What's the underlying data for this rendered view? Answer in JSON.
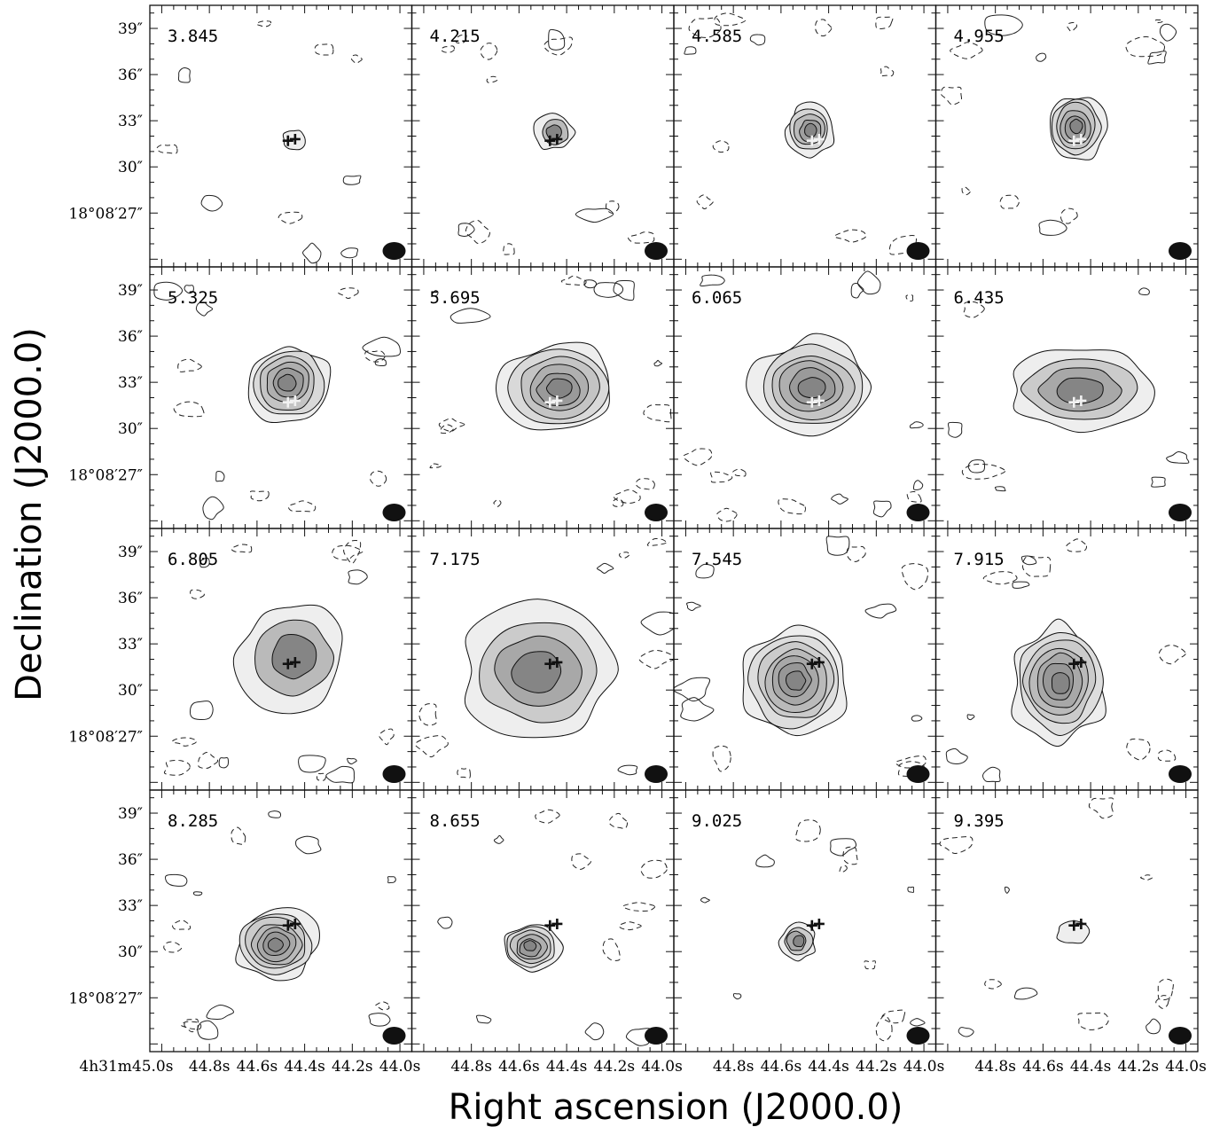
{
  "chart_data": {
    "type": "channel_map",
    "xlabel": "Right ascension (J2000.0)",
    "ylabel": "Declination (J2000.0)",
    "grid": false,
    "layout": {
      "rows": 4,
      "cols": 4
    },
    "ra_tick_labels_first_column": [
      "4h31m45.0s",
      "44.8s",
      "44.6s",
      "44.4s",
      "44.2s",
      "44.0s"
    ],
    "ra_tick_labels_other_columns": [
      "44.8s",
      "44.6s",
      "44.4s",
      "44.2s",
      "44.0s"
    ],
    "ra_ticks_seconds": [
      45.0,
      44.8,
      44.6,
      44.4,
      44.2,
      44.0
    ],
    "dec_tick_labels": [
      "39″",
      "36″",
      "33″",
      "30″",
      "18°08′27″"
    ],
    "dec_ticks_arcsec": [
      39,
      36,
      33,
      30,
      27
    ],
    "x_range_seconds": [
      45.05,
      43.95
    ],
    "y_range_arcsec": [
      40.5,
      23.5
    ],
    "beam_marker": "filled ellipse, bottom-right of each panel",
    "star_positions": [
      {
        "ra_s": 44.47,
        "dec_arcsec": 31.7
      },
      {
        "ra_s": 44.44,
        "dec_arcsec": 31.8
      }
    ],
    "panels": [
      {
        "velocity": "3.845",
        "peak": {
          "ra_s": 44.45,
          "dec_arcsec": 31.8
        },
        "levels": 1,
        "spread": [
          0.35,
          0.35
        ],
        "marker_color": "dark"
      },
      {
        "velocity": "4.215",
        "peak": {
          "ra_s": 44.45,
          "dec_arcsec": 32.2
        },
        "levels": 3,
        "spread": [
          0.6,
          0.6
        ],
        "marker_color": "dark"
      },
      {
        "velocity": "4.585",
        "peak": {
          "ra_s": 44.48,
          "dec_arcsec": 32.4
        },
        "levels": 5,
        "spread": [
          0.75,
          0.85
        ],
        "marker_color": "light"
      },
      {
        "velocity": "4.955",
        "peak": {
          "ra_s": 44.46,
          "dec_arcsec": 32.6
        },
        "levels": 6,
        "spread": [
          0.9,
          1.1
        ],
        "marker_color": "light"
      },
      {
        "velocity": "5.325",
        "peak": {
          "ra_s": 44.47,
          "dec_arcsec": 32.9
        },
        "levels": 6,
        "spread": [
          1.3,
          1.3
        ],
        "marker_color": "light"
      },
      {
        "velocity": "5.695",
        "peak": {
          "ra_s": 44.43,
          "dec_arcsec": 32.6
        },
        "levels": 6,
        "spread": [
          1.8,
          1.5
        ],
        "marker_color": "light"
      },
      {
        "velocity": "6.065",
        "peak": {
          "ra_s": 44.47,
          "dec_arcsec": 32.7
        },
        "levels": 6,
        "spread": [
          1.9,
          1.6
        ],
        "marker_color": "light"
      },
      {
        "velocity": "6.435",
        "peak": {
          "ra_s": 44.44,
          "dec_arcsec": 32.5
        },
        "levels": 4,
        "spread": [
          2.3,
          1.4
        ],
        "marker_color": "light"
      },
      {
        "velocity": "6.805",
        "peak": {
          "ra_s": 44.45,
          "dec_arcsec": 32.2
        },
        "levels": 3,
        "spread": [
          1.7,
          1.8
        ],
        "marker_color": "dark"
      },
      {
        "velocity": "7.175",
        "peak": {
          "ra_s": 44.52,
          "dec_arcsec": 31.2
        },
        "levels": 4,
        "spread": [
          2.4,
          2.2
        ],
        "marker_color": "dark"
      },
      {
        "velocity": "7.545",
        "peak": {
          "ra_s": 44.54,
          "dec_arcsec": 30.6
        },
        "levels": 7,
        "spread": [
          1.6,
          1.8
        ],
        "marker_color": "dark"
      },
      {
        "velocity": "7.915",
        "peak": {
          "ra_s": 44.53,
          "dec_arcsec": 30.5
        },
        "levels": 7,
        "spread": [
          1.5,
          2.0
        ],
        "marker_color": "dark"
      },
      {
        "velocity": "8.285",
        "peak": {
          "ra_s": 44.52,
          "dec_arcsec": 30.5
        },
        "levels": 7,
        "spread": [
          1.3,
          1.2
        ],
        "marker_color": "dark"
      },
      {
        "velocity": "8.655",
        "peak": {
          "ra_s": 44.55,
          "dec_arcsec": 30.3
        },
        "levels": 6,
        "spread": [
          0.9,
          0.8
        ],
        "marker_color": "dark"
      },
      {
        "velocity": "9.025",
        "peak": {
          "ra_s": 44.53,
          "dec_arcsec": 30.6
        },
        "levels": 4,
        "spread": [
          0.55,
          0.6
        ],
        "marker_color": "dark"
      },
      {
        "velocity": "9.395",
        "peak": {
          "ra_s": 44.47,
          "dec_arcsec": 31.3
        },
        "levels": 1,
        "spread": [
          0.5,
          0.4
        ],
        "marker_color": "dark"
      }
    ]
  }
}
